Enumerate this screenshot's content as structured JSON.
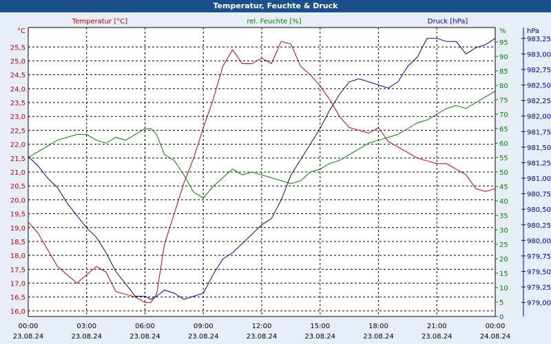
{
  "title": "Temperatur, Feuchte & Druck",
  "colors": {
    "titlebar_bg": "#1a4f8c",
    "background": "#e8eef8",
    "plot_bg": "#ffffff",
    "temperature": "#c00000",
    "humidity": "#008000",
    "pressure": "#0000a0",
    "grid": "#000000"
  },
  "chart_data": {
    "type": "line",
    "title": "Temperatur, Feuchte & Druck",
    "grid": true,
    "x_ticks": [
      {
        "time": "00:00",
        "date": "23.08.24"
      },
      {
        "time": "03:00",
        "date": "23.08.24"
      },
      {
        "time": "06:00",
        "date": "23.08.24"
      },
      {
        "time": "09:00",
        "date": "23.08.24"
      },
      {
        "time": "12:00",
        "date": "23.08.24"
      },
      {
        "time": "15:00",
        "date": "23.08.24"
      },
      {
        "time": "18:00",
        "date": "23.08.24"
      },
      {
        "time": "21:00",
        "date": "23.08.24"
      },
      {
        "time": "00:00",
        "date": "24.08.24"
      }
    ],
    "x_range_hours": [
      0,
      24
    ],
    "axes": {
      "temperature": {
        "label": "Temperatur [°C]",
        "unit": "°C",
        "side": "left",
        "range": [
          15.8,
          26.2
        ],
        "ticks": [
          "16,0",
          "16,5",
          "17,0",
          "17,5",
          "18,0",
          "18,5",
          "19,0",
          "19,5",
          "20,0",
          "20,5",
          "21,0",
          "21,5",
          "22,0",
          "22,5",
          "23,0",
          "23,5",
          "24,0",
          "24,5",
          "25,0",
          "25,5"
        ]
      },
      "humidity": {
        "label": "rel. Feuchte [%]",
        "unit": "%",
        "side": "right",
        "range": [
          0,
          100
        ],
        "ticks": [
          "0",
          "5",
          "10",
          "15",
          "20",
          "25",
          "30",
          "35",
          "40",
          "45",
          "50",
          "55",
          "60",
          "65",
          "70",
          "75",
          "80",
          "85",
          "90",
          "95"
        ]
      },
      "pressure": {
        "label": "Druck [hPa]",
        "unit": "hPa",
        "side": "right-outer",
        "range": [
          978.775,
          983.425
        ],
        "ticks": [
          "979,00",
          "979,25",
          "979,50",
          "979,75",
          "980,00",
          "980,25",
          "980,50",
          "980,75",
          "981,00",
          "981,25",
          "981,50",
          "981,75",
          "982,00",
          "982,25",
          "982,50",
          "982,75",
          "983,00",
          "983,25"
        ]
      }
    },
    "series": [
      {
        "name": "Temperatur [°C]",
        "axis": "temperature",
        "x": [
          0,
          0.5,
          1,
          1.5,
          2,
          2.5,
          3,
          3.5,
          4,
          4.5,
          5,
          5.5,
          6,
          6.3,
          6.6,
          7,
          7.5,
          8,
          8.5,
          9,
          9.5,
          10,
          10.5,
          11,
          11.5,
          12,
          12.5,
          13,
          13.5,
          14,
          14.5,
          15,
          15.5,
          16,
          16.5,
          17,
          17.5,
          18,
          18.5,
          19,
          19.5,
          20,
          20.5,
          21,
          21.5,
          22,
          22.5,
          23,
          23.5,
          24
        ],
        "y": [
          19.2,
          18.8,
          18.2,
          17.6,
          17.3,
          17.0,
          17.3,
          17.6,
          17.4,
          16.7,
          16.6,
          16.5,
          16.3,
          16.3,
          16.6,
          18.4,
          19.5,
          20.6,
          21.5,
          22.6,
          23.6,
          24.8,
          25.4,
          24.9,
          24.9,
          25.1,
          24.9,
          25.7,
          25.6,
          24.8,
          24.5,
          24.1,
          23.6,
          23.0,
          22.6,
          22.5,
          22.4,
          22.6,
          22.1,
          21.9,
          21.7,
          21.5,
          21.4,
          21.3,
          21.3,
          21.1,
          20.9,
          20.4,
          20.3,
          20.4
        ]
      },
      {
        "name": "rel. Feuchte [%]",
        "axis": "humidity",
        "x": [
          0,
          0.5,
          1,
          1.5,
          2,
          2.5,
          3,
          3.5,
          4,
          4.5,
          5,
          5.5,
          6,
          6.3,
          6.6,
          7,
          7.5,
          8,
          8.5,
          9,
          9.5,
          10,
          10.5,
          11,
          11.5,
          12,
          12.5,
          13,
          13.5,
          14,
          14.5,
          15,
          15.5,
          16,
          16.5,
          17,
          17.5,
          18,
          18.5,
          19,
          19.5,
          20,
          20.5,
          21,
          21.5,
          22,
          22.5,
          23,
          23.5,
          24
        ],
        "y": [
          55,
          57,
          59,
          61,
          62,
          63,
          63,
          61,
          60,
          62,
          61,
          63,
          65,
          65,
          63,
          56,
          54,
          49,
          43,
          41,
          45,
          48,
          51,
          49,
          50,
          49,
          48,
          47,
          46,
          47,
          50,
          51,
          53,
          54,
          56,
          58,
          60,
          61,
          62,
          63,
          65,
          67,
          68,
          70,
          72,
          73,
          72,
          74,
          76,
          78
        ]
      },
      {
        "name": "Druck [hPa]",
        "axis": "pressure",
        "x": [
          0,
          0.5,
          1,
          1.5,
          2,
          2.5,
          3,
          3.5,
          4,
          4.5,
          5,
          5.5,
          6,
          6.3,
          6.6,
          7,
          7.5,
          8,
          8.5,
          9,
          9.5,
          10,
          10.5,
          11,
          11.5,
          12,
          12.5,
          13,
          13.5,
          14,
          14.5,
          15,
          15.5,
          16,
          16.5,
          17,
          17.5,
          18,
          18.5,
          19,
          19.5,
          20,
          20.5,
          21,
          21.5,
          22,
          22.5,
          23,
          23.5,
          24
        ],
        "y": [
          981.35,
          981.2,
          981.0,
          980.85,
          980.6,
          980.4,
          980.2,
          980.05,
          979.8,
          979.5,
          979.3,
          979.1,
          979.1,
          979.05,
          979.1,
          979.2,
          979.15,
          979.05,
          979.1,
          979.15,
          979.45,
          979.7,
          979.8,
          979.95,
          980.1,
          980.25,
          980.35,
          980.65,
          981.05,
          981.3,
          981.55,
          981.8,
          982.1,
          982.35,
          982.55,
          982.6,
          982.55,
          982.5,
          982.45,
          982.55,
          982.8,
          982.95,
          983.25,
          983.25,
          983.2,
          983.2,
          983.0,
          983.1,
          983.15,
          983.25
        ]
      }
    ]
  }
}
